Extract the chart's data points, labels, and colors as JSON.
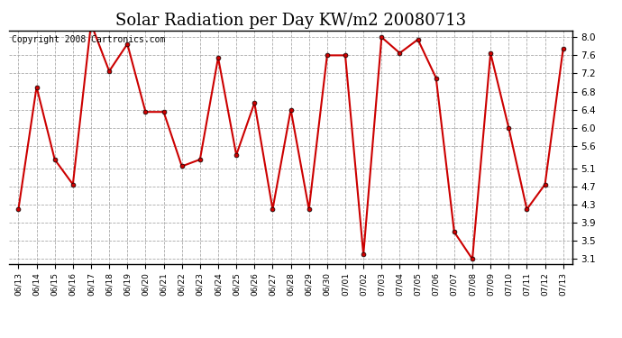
{
  "title": "Solar Radiation per Day KW/m2 20080713",
  "copyright": "Copyright 2008 Cartronics.com",
  "dates": [
    "06/13",
    "06/14",
    "06/15",
    "06/16",
    "06/17",
    "06/18",
    "06/19",
    "06/20",
    "06/21",
    "06/22",
    "06/23",
    "06/24",
    "06/25",
    "06/26",
    "06/27",
    "06/28",
    "06/29",
    "06/30",
    "07/01",
    "07/02",
    "07/03",
    "07/04",
    "07/05",
    "07/06",
    "07/07",
    "07/08",
    "07/09",
    "07/10",
    "07/11",
    "07/12",
    "07/13"
  ],
  "values": [
    4.2,
    6.9,
    5.3,
    4.75,
    8.3,
    7.25,
    7.85,
    6.35,
    6.35,
    5.15,
    5.3,
    7.55,
    5.4,
    6.55,
    4.2,
    6.4,
    4.2,
    7.6,
    7.6,
    3.2,
    8.0,
    7.65,
    7.95,
    7.1,
    3.7,
    3.1,
    7.65,
    6.0,
    4.2,
    4.75,
    7.75
  ],
  "line_color": "#cc0000",
  "marker": "o",
  "marker_size": 3.5,
  "bg_color": "#ffffff",
  "grid_color": "#aaaaaa",
  "yticks": [
    3.1,
    3.5,
    3.9,
    4.3,
    4.7,
    5.1,
    5.6,
    6.0,
    6.4,
    6.8,
    7.2,
    7.6,
    8.0
  ],
  "ylim": [
    3.0,
    8.15
  ],
  "title_fontsize": 13,
  "copyright_fontsize": 7,
  "tick_fontsize": 7.5,
  "xtick_fontsize": 6.5
}
